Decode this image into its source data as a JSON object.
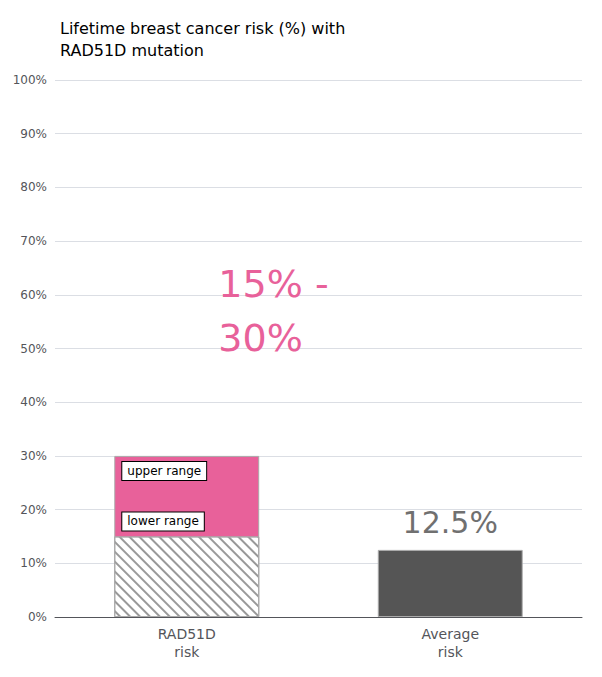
{
  "chart_data": {
    "type": "bar",
    "title": "Lifetime breast cancer risk (%) with\nRAD51D mutation",
    "categories": [
      "RAD51D\nrisk",
      "Average\nrisk"
    ],
    "values": [
      30,
      12.5
    ],
    "lower": [
      15,
      null
    ],
    "colors": [
      "#E8619A",
      "#555555"
    ],
    "ylim": [
      0,
      100
    ],
    "yticks": [
      {
        "value": 0,
        "label": "0%"
      },
      {
        "value": 10,
        "label": "10%"
      },
      {
        "value": 20,
        "label": "20%"
      },
      {
        "value": 30,
        "label": "30%"
      },
      {
        "value": 40,
        "label": "40%"
      },
      {
        "value": 50,
        "label": "50%"
      },
      {
        "value": 60,
        "label": "60%"
      },
      {
        "value": 70,
        "label": "70%"
      },
      {
        "value": 80,
        "label": "80%"
      },
      {
        "value": 90,
        "label": "90%"
      },
      {
        "value": 100,
        "label": "100%"
      }
    ],
    "grid": true,
    "annotations": [
      {
        "text": "upper range",
        "value": 30
      },
      {
        "text": "lower range",
        "value": 15
      },
      {
        "text": "15% -",
        "color": "#E8619A"
      },
      {
        "text": "30%",
        "color": "#E8619A"
      },
      {
        "text": "12.5%",
        "value": 12.5,
        "color": "#707070"
      }
    ]
  }
}
